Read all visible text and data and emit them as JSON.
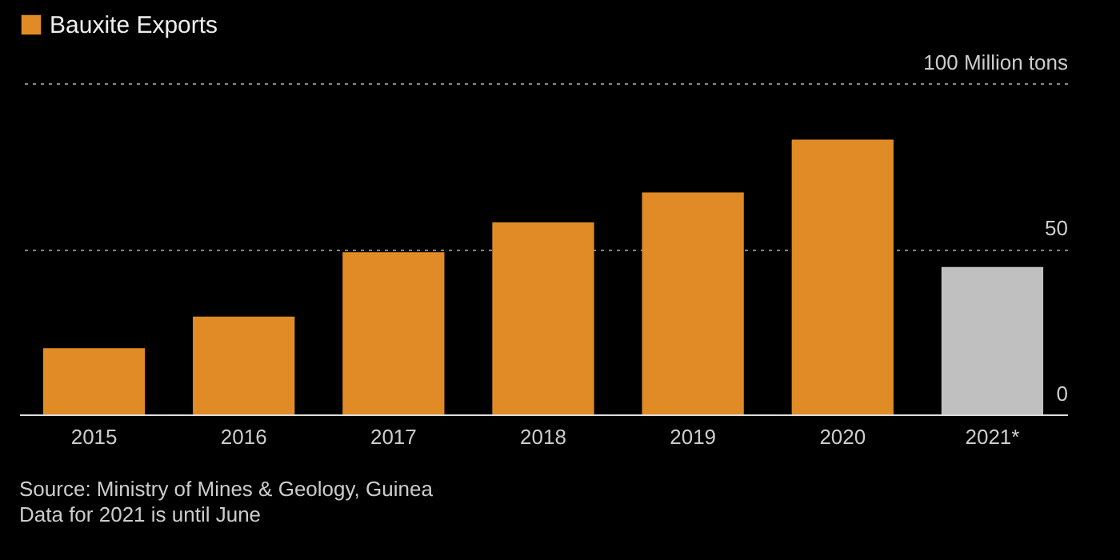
{
  "chart_data": {
    "type": "bar",
    "categories": [
      "2015",
      "2016",
      "2017",
      "2018",
      "2019",
      "2020",
      "2021*"
    ],
    "series": [
      {
        "name": "Bauxite Exports",
        "color": "#e08b26",
        "values": [
          20,
          29.5,
          49,
          58,
          67,
          83,
          44.5
        ],
        "colors": [
          "#e08b26",
          "#e08b26",
          "#e08b26",
          "#e08b26",
          "#e08b26",
          "#e08b26",
          "#c0c0c0"
        ]
      }
    ],
    "ylim": [
      0,
      100
    ],
    "yticks": [
      0,
      50,
      {
        "value": 100,
        "label": "100 Million tons"
      }
    ],
    "grid": "y",
    "legend": "top left",
    "annotations": [
      "Source: Ministry of Mines & Geology, Guinea",
      "Data for 2021 is until June"
    ]
  }
}
